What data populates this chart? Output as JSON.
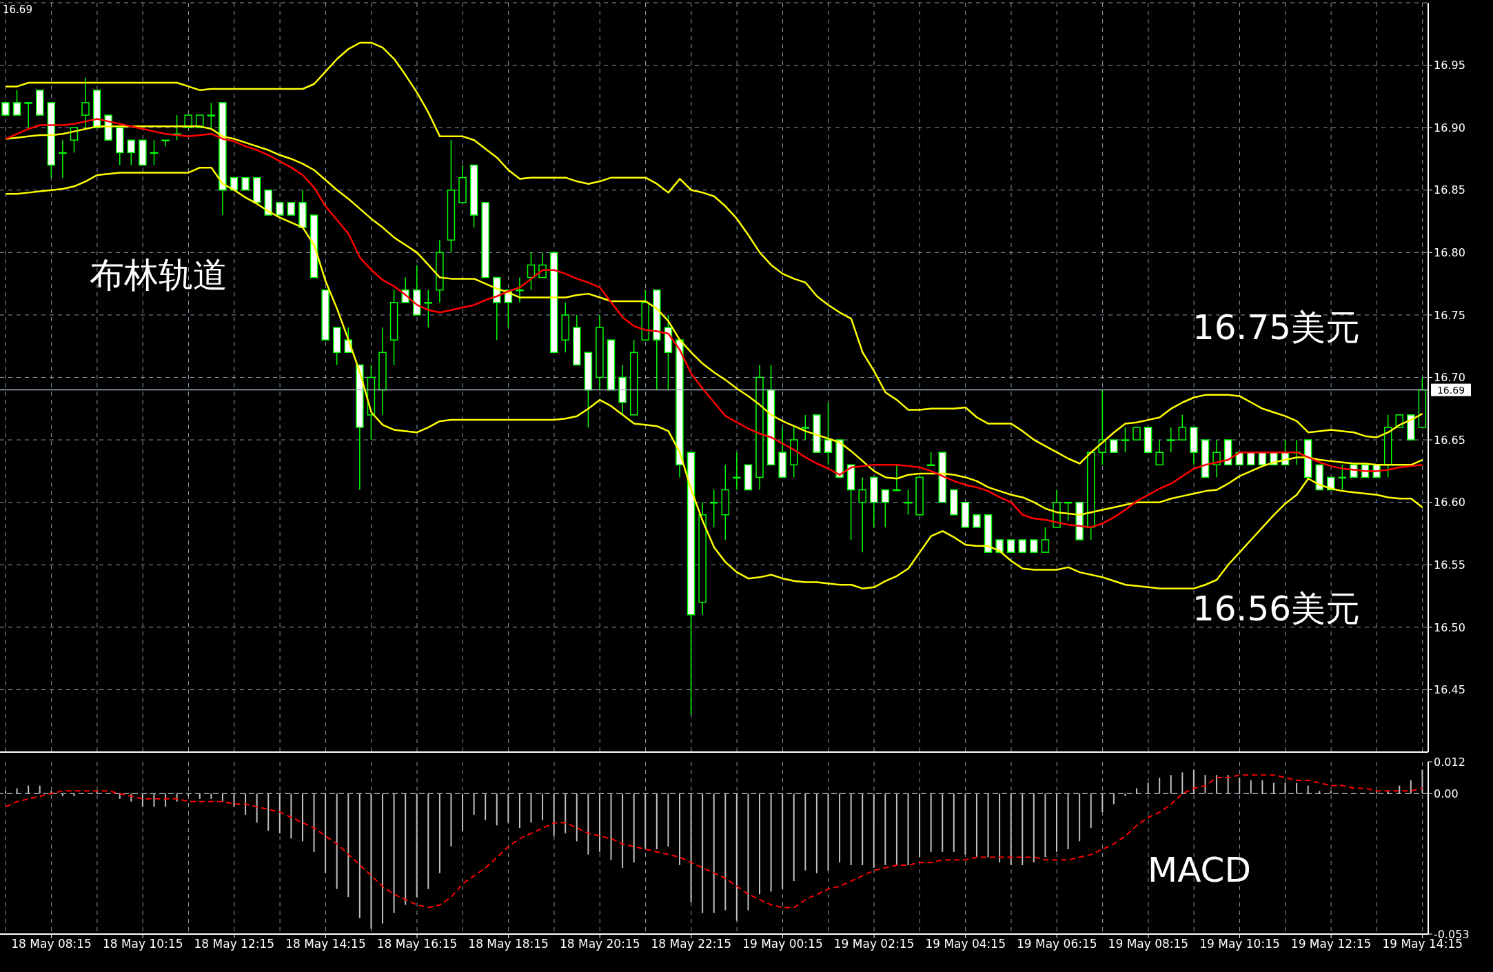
{
  "chart_data": [
    {
      "type": "candlestick",
      "color": "#00ff00",
      "tick_labels": "y",
      "grid": true,
      "categories": [
        null,
        null,
        null,
        null,
        null,
        null,
        null,
        null,
        null,
        null,
        null,
        null,
        null,
        null,
        null,
        null,
        null,
        null,
        null,
        null,
        null,
        null,
        null,
        null,
        null,
        null,
        null,
        null,
        null,
        null,
        null,
        null,
        null,
        null,
        null,
        null,
        null,
        null,
        null,
        null,
        null,
        null,
        null,
        null,
        null,
        null,
        null,
        null,
        null,
        null,
        null,
        null,
        null,
        null,
        null,
        null,
        null,
        null,
        null,
        null,
        null,
        null,
        null,
        null,
        null,
        null,
        null,
        null,
        null,
        null,
        null,
        null,
        null,
        null,
        null,
        null,
        null,
        null,
        null,
        null,
        null,
        null,
        null,
        null,
        null,
        null,
        null,
        null,
        null,
        null,
        null,
        null,
        null,
        null,
        null,
        null,
        null,
        null,
        null,
        null,
        null,
        null,
        null,
        null,
        null,
        null,
        null,
        null,
        null,
        null,
        null,
        null,
        null,
        null,
        null,
        null,
        null,
        null,
        null,
        null,
        null,
        null,
        null,
        null,
        null
      ],
      "ohlc": [
        [
          16.92,
          16.921,
          16.909,
          16.91
        ],
        [
          16.92,
          16.93,
          16.91,
          16.91
        ],
        [
          16.92,
          16.92,
          16.9,
          16.92
        ],
        [
          16.93,
          16.93,
          16.91,
          16.91
        ],
        [
          16.92,
          16.92,
          16.86,
          16.87
        ],
        [
          16.88,
          16.89,
          16.86,
          16.88
        ],
        [
          16.89,
          16.9,
          16.88,
          16.9
        ],
        [
          16.91,
          16.94,
          16.9,
          16.92
        ],
        [
          16.93,
          16.93,
          16.9,
          16.9
        ],
        [
          16.91,
          16.91,
          16.89,
          16.89
        ],
        [
          16.9,
          16.9,
          16.87,
          16.88
        ],
        [
          16.89,
          16.89,
          16.87,
          16.88
        ],
        [
          16.89,
          16.89,
          16.87,
          16.87
        ],
        [
          16.88,
          16.89,
          16.87,
          16.88
        ],
        [
          16.89,
          16.89,
          16.885,
          16.89
        ],
        [
          16.895,
          16.91,
          16.89,
          16.895
        ],
        [
          16.9,
          16.91,
          16.9,
          16.91
        ],
        [
          16.9,
          16.91,
          16.9,
          16.91
        ],
        [
          16.91,
          16.92,
          16.9,
          16.91
        ],
        [
          16.92,
          16.92,
          16.83,
          16.85
        ],
        [
          16.86,
          16.86,
          16.85,
          16.85
        ],
        [
          16.86,
          16.86,
          16.85,
          16.85
        ],
        [
          16.86,
          16.86,
          16.84,
          16.84
        ],
        [
          16.85,
          16.85,
          16.83,
          16.83
        ],
        [
          16.84,
          16.84,
          16.83,
          16.83
        ],
        [
          16.84,
          16.84,
          16.83,
          16.83
        ],
        [
          16.84,
          16.85,
          16.82,
          16.82
        ],
        [
          16.83,
          16.83,
          16.78,
          16.78
        ],
        [
          16.77,
          16.77,
          16.73,
          16.73
        ],
        [
          16.74,
          16.74,
          16.71,
          16.72
        ],
        [
          16.73,
          16.74,
          16.72,
          16.72
        ],
        [
          16.71,
          16.71,
          16.61,
          16.66
        ],
        [
          16.67,
          16.71,
          16.65,
          16.7
        ],
        [
          16.69,
          16.74,
          16.67,
          16.72
        ],
        [
          16.73,
          16.77,
          16.71,
          16.76
        ],
        [
          16.77,
          16.78,
          16.76,
          16.76
        ],
        [
          16.77,
          16.79,
          16.75,
          16.75
        ],
        [
          16.76,
          16.77,
          16.74,
          16.76
        ],
        [
          16.77,
          16.81,
          16.76,
          16.8
        ],
        [
          16.81,
          16.89,
          16.8,
          16.85
        ],
        [
          16.84,
          16.87,
          16.84,
          16.86
        ],
        [
          16.87,
          16.87,
          16.82,
          16.83
        ],
        [
          16.84,
          16.84,
          16.78,
          16.78
        ],
        [
          16.78,
          16.78,
          16.73,
          16.76
        ],
        [
          16.77,
          16.77,
          16.74,
          16.76
        ],
        [
          16.77,
          16.78,
          16.76,
          16.77
        ],
        [
          16.78,
          16.8,
          16.77,
          16.79
        ],
        [
          16.78,
          16.8,
          16.78,
          16.79
        ],
        [
          16.8,
          16.8,
          16.72,
          16.72
        ],
        [
          16.73,
          16.76,
          16.72,
          16.75
        ],
        [
          16.74,
          16.75,
          16.71,
          16.71
        ],
        [
          16.72,
          16.72,
          16.66,
          16.69
        ],
        [
          16.7,
          16.75,
          16.69,
          16.74
        ],
        [
          16.73,
          16.73,
          16.69,
          16.69
        ],
        [
          16.7,
          16.71,
          16.67,
          16.68
        ],
        [
          16.67,
          16.73,
          16.67,
          16.72
        ],
        [
          16.73,
          16.77,
          16.73,
          16.76
        ],
        [
          16.77,
          16.77,
          16.69,
          16.73
        ],
        [
          16.74,
          16.75,
          16.69,
          16.72
        ],
        [
          16.73,
          16.73,
          16.62,
          16.63
        ],
        [
          16.64,
          16.64,
          16.43,
          16.51
        ],
        [
          16.52,
          16.6,
          16.51,
          16.59
        ],
        [
          16.6,
          16.61,
          16.58,
          16.6
        ],
        [
          16.59,
          16.63,
          16.57,
          16.61
        ],
        [
          16.62,
          16.64,
          16.61,
          16.62
        ],
        [
          16.63,
          16.63,
          16.61,
          16.61
        ],
        [
          16.62,
          16.71,
          16.61,
          16.7
        ],
        [
          16.69,
          16.71,
          16.63,
          16.63
        ],
        [
          16.64,
          16.66,
          16.62,
          16.62
        ],
        [
          16.63,
          16.66,
          16.62,
          16.65
        ],
        [
          16.66,
          16.67,
          16.65,
          16.66
        ],
        [
          16.67,
          16.67,
          16.64,
          16.64
        ],
        [
          16.65,
          16.68,
          16.63,
          16.64
        ],
        [
          16.65,
          16.65,
          16.62,
          16.62
        ],
        [
          16.63,
          16.63,
          16.57,
          16.61
        ],
        [
          16.6,
          16.62,
          16.56,
          16.61
        ],
        [
          16.62,
          16.62,
          16.58,
          16.6
        ],
        [
          16.61,
          16.61,
          16.58,
          16.6
        ],
        [
          16.61,
          16.63,
          16.61,
          16.61
        ],
        [
          16.6,
          16.61,
          16.59,
          16.6
        ],
        [
          16.59,
          16.62,
          16.59,
          16.62
        ],
        [
          16.63,
          16.64,
          16.63,
          16.63
        ],
        [
          16.64,
          16.64,
          16.6,
          16.6
        ],
        [
          16.61,
          16.61,
          16.59,
          16.59
        ],
        [
          16.6,
          16.6,
          16.58,
          16.58
        ],
        [
          16.59,
          16.59,
          16.58,
          16.58
        ],
        [
          16.59,
          16.59,
          16.56,
          16.56
        ],
        [
          16.57,
          16.57,
          16.56,
          16.56
        ],
        [
          16.57,
          16.57,
          16.56,
          16.56
        ],
        [
          16.57,
          16.57,
          16.56,
          16.56
        ],
        [
          16.57,
          16.57,
          16.56,
          16.56
        ],
        [
          16.56,
          16.58,
          16.56,
          16.57
        ],
        [
          16.58,
          16.61,
          16.58,
          16.6
        ],
        [
          16.6,
          16.6,
          16.585,
          16.6
        ],
        [
          16.6,
          16.6,
          16.57,
          16.57
        ],
        [
          16.58,
          16.64,
          16.57,
          16.64
        ],
        [
          16.64,
          16.69,
          16.63,
          16.65
        ],
        [
          16.65,
          16.65,
          16.64,
          16.64
        ],
        [
          16.65,
          16.66,
          16.64,
          16.65
        ],
        [
          16.65,
          16.66,
          16.65,
          16.66
        ],
        [
          16.66,
          16.66,
          16.64,
          16.64
        ],
        [
          16.63,
          16.65,
          16.63,
          16.64
        ],
        [
          16.65,
          16.66,
          16.64,
          16.65
        ],
        [
          16.65,
          16.67,
          16.65,
          16.66
        ],
        [
          16.66,
          16.66,
          16.63,
          16.64
        ],
        [
          16.65,
          16.65,
          16.62,
          16.62
        ],
        [
          16.63,
          16.65,
          16.62,
          16.64
        ],
        [
          16.65,
          16.65,
          16.63,
          16.63
        ],
        [
          16.64,
          16.64,
          16.63,
          16.63
        ],
        [
          16.64,
          16.64,
          16.63,
          16.63
        ],
        [
          16.64,
          16.64,
          16.63,
          16.63
        ],
        [
          16.64,
          16.64,
          16.63,
          16.63
        ],
        [
          16.64,
          16.65,
          16.63,
          16.63
        ],
        [
          16.64,
          16.65,
          16.63,
          16.64
        ],
        [
          16.65,
          16.65,
          16.62,
          16.62
        ],
        [
          16.63,
          16.63,
          16.61,
          16.61
        ],
        [
          16.62,
          16.62,
          16.61,
          16.61
        ],
        [
          16.62,
          16.63,
          16.61,
          16.62
        ],
        [
          16.63,
          16.63,
          16.62,
          16.62
        ],
        [
          16.63,
          16.63,
          16.62,
          16.62
        ],
        [
          16.63,
          16.63,
          16.62,
          16.62
        ],
        [
          16.63,
          16.67,
          16.62,
          16.66
        ],
        [
          16.66,
          16.67,
          16.66,
          16.67
        ],
        [
          16.67,
          16.67,
          16.65,
          16.65
        ],
        [
          16.66,
          16.7,
          16.66,
          16.69
        ]
      ],
      "series": [
        {
          "type": "line",
          "color": "#ffff00",
          "values": [
            16.933,
            16.933,
            16.936,
            16.936,
            16.936,
            16.936,
            16.936,
            16.936,
            16.936,
            16.936,
            16.936,
            16.936,
            16.936,
            16.936,
            16.936,
            16.936,
            16.933,
            16.93,
            16.931,
            16.931,
            16.931,
            16.931,
            16.931,
            16.931,
            16.931,
            16.931,
            16.931,
            16.935,
            16.945,
            16.955,
            16.963,
            16.968,
            16.968,
            16.964,
            16.955,
            16.942,
            16.928,
            16.912,
            16.893,
            16.893,
            16.893,
            16.89,
            16.883,
            16.876,
            16.866,
            16.859,
            16.86,
            16.86,
            16.86,
            16.86,
            16.857,
            16.855,
            16.857,
            16.86,
            16.86,
            16.86,
            16.86,
            16.855,
            16.848,
            16.859,
            16.85,
            16.848,
            16.845,
            16.837,
            16.827,
            16.814,
            16.8,
            16.79,
            16.783,
            16.779,
            16.776,
            16.765,
            16.758,
            16.752,
            16.747,
            16.72,
            16.705,
            16.688,
            16.682,
            16.674,
            16.674,
            16.675,
            16.675,
            16.675,
            16.676,
            16.668,
            16.663,
            16.663,
            16.663,
            16.657,
            16.65,
            16.645,
            16.64,
            16.635,
            16.631,
            16.64,
            16.648,
            16.656,
            16.663,
            16.664,
            16.666,
            16.668,
            16.675,
            16.68,
            16.684,
            16.686,
            16.686,
            16.686,
            16.685,
            16.68,
            16.675,
            16.672,
            16.669,
            16.665,
            16.656,
            16.657,
            16.658,
            16.657,
            16.656,
            16.653,
            16.652,
            16.656,
            16.662,
            16.666,
            16.671
          ]
        },
        {
          "type": "line",
          "color": "#ffff00",
          "values": [
            16.891,
            16.892,
            16.893,
            16.894,
            16.894,
            16.895,
            16.897,
            16.899,
            16.901,
            16.901,
            16.901,
            16.901,
            16.901,
            16.901,
            16.901,
            16.901,
            16.901,
            16.901,
            16.899,
            16.893,
            16.891,
            16.888,
            16.885,
            16.882,
            16.878,
            16.875,
            16.871,
            16.866,
            16.858,
            16.85,
            16.843,
            16.835,
            16.827,
            16.82,
            16.812,
            16.806,
            16.8,
            16.79,
            16.78,
            16.779,
            16.779,
            16.779,
            16.775,
            16.771,
            16.768,
            16.764,
            16.764,
            16.764,
            16.764,
            16.764,
            16.766,
            16.767,
            16.764,
            16.761,
            16.761,
            16.761,
            16.761,
            16.755,
            16.745,
            16.73,
            16.72,
            16.711,
            16.704,
            16.698,
            16.691,
            16.685,
            16.678,
            16.67,
            16.665,
            16.661,
            16.657,
            16.654,
            16.651,
            16.648,
            16.641,
            16.633,
            16.625,
            16.62,
            16.619,
            16.622,
            16.623,
            16.623,
            16.623,
            16.622,
            16.62,
            16.617,
            16.612,
            16.609,
            16.606,
            16.604,
            16.6,
            16.595,
            16.592,
            16.591,
            16.59,
            16.592,
            16.594,
            16.596,
            16.598,
            16.6,
            16.6,
            16.6,
            16.603,
            16.605,
            16.607,
            16.609,
            16.61,
            16.615,
            16.621,
            16.625,
            16.629,
            16.632,
            16.634,
            16.636,
            16.636,
            16.634,
            16.633,
            16.632,
            16.631,
            16.631,
            16.63,
            16.63,
            16.63,
            16.63,
            16.634
          ]
        },
        {
          "type": "line",
          "color": "#ffff00",
          "values": [
            16.847,
            16.847,
            16.848,
            16.849,
            16.85,
            16.851,
            16.853,
            16.857,
            16.862,
            16.863,
            16.864,
            16.864,
            16.864,
            16.864,
            16.864,
            16.864,
            16.864,
            16.868,
            16.868,
            16.855,
            16.85,
            16.844,
            16.839,
            16.833,
            16.828,
            16.824,
            16.82,
            16.806,
            16.777,
            16.755,
            16.73,
            16.704,
            16.672,
            16.662,
            16.658,
            16.657,
            16.656,
            16.66,
            16.665,
            16.666,
            16.666,
            16.666,
            16.666,
            16.666,
            16.666,
            16.666,
            16.666,
            16.666,
            16.666,
            16.667,
            16.669,
            16.675,
            16.682,
            16.677,
            16.67,
            16.663,
            16.662,
            16.661,
            16.657,
            16.64,
            16.61,
            16.585,
            16.564,
            16.552,
            16.544,
            16.539,
            16.54,
            16.542,
            16.539,
            16.537,
            16.536,
            16.536,
            16.535,
            16.534,
            16.534,
            16.531,
            16.532,
            16.537,
            16.541,
            16.547,
            16.56,
            16.573,
            16.577,
            16.572,
            16.566,
            16.565,
            16.565,
            16.561,
            16.553,
            16.547,
            16.546,
            16.546,
            16.546,
            16.548,
            16.544,
            16.542,
            16.54,
            16.537,
            16.534,
            16.533,
            16.532,
            16.531,
            16.531,
            16.531,
            16.531,
            16.534,
            16.538,
            16.55,
            16.56,
            16.57,
            16.58,
            16.59,
            16.599,
            16.606,
            16.619,
            16.614,
            16.611,
            16.609,
            16.608,
            16.607,
            16.606,
            16.604,
            16.603,
            16.603,
            16.596
          ]
        },
        {
          "type": "line",
          "color": "#ff0000",
          "values": [
            16.891,
            16.895,
            16.899,
            16.902,
            16.902,
            16.902,
            16.903,
            16.905,
            16.907,
            16.905,
            16.903,
            16.901,
            16.899,
            16.897,
            16.895,
            16.894,
            16.893,
            16.894,
            16.895,
            16.891,
            16.889,
            16.885,
            16.882,
            16.878,
            16.873,
            16.868,
            16.862,
            16.852,
            16.837,
            16.826,
            16.815,
            16.796,
            16.786,
            16.778,
            16.773,
            16.766,
            16.758,
            16.754,
            16.752,
            16.754,
            16.756,
            16.758,
            16.762,
            16.765,
            16.769,
            16.772,
            16.779,
            16.786,
            16.786,
            16.783,
            16.779,
            16.776,
            16.772,
            16.76,
            16.748,
            16.741,
            16.738,
            16.737,
            16.735,
            16.722,
            16.703,
            16.691,
            16.68,
            16.669,
            16.664,
            16.659,
            16.655,
            16.652,
            16.647,
            16.642,
            16.636,
            16.631,
            16.627,
            16.622,
            16.628,
            16.629,
            16.63,
            16.63,
            16.63,
            16.629,
            16.628,
            16.625,
            16.621,
            16.617,
            16.614,
            16.612,
            16.609,
            16.604,
            16.6,
            16.59,
            16.587,
            16.586,
            16.584,
            16.582,
            16.581,
            16.58,
            16.583,
            16.588,
            16.594,
            16.601,
            16.606,
            16.611,
            16.615,
            16.621,
            16.627,
            16.63,
            16.632,
            16.634,
            16.64,
            16.64,
            16.64,
            16.64,
            16.64,
            16.64,
            16.636,
            16.632,
            16.629,
            16.627,
            16.626,
            16.625,
            16.625,
            16.626,
            16.628,
            16.629,
            16.63
          ]
        }
      ],
      "ylim": [
        16.4,
        17.0
      ],
      "yticks": [
        {
          "value": 16.45,
          "label": "16.45"
        },
        {
          "value": 16.5,
          "label": "16.50"
        },
        {
          "value": 16.55,
          "label": "16.55"
        },
        {
          "value": 16.6,
          "label": "16.60"
        },
        {
          "value": 16.65,
          "label": "16.65"
        },
        {
          "value": 16.7,
          "label": "16.70"
        },
        {
          "value": 16.75,
          "label": "16.75"
        },
        {
          "value": 16.8,
          "label": "16.80"
        },
        {
          "value": 16.85,
          "label": "16.85"
        },
        {
          "value": 16.9,
          "label": "16.90"
        },
        {
          "value": 16.95,
          "label": "16.95"
        }
      ],
      "ref_lines": [
        {
          "axis": "y",
          "value": 16.69,
          "label": "16.69",
          "color": "#a8b8c8"
        }
      ],
      "annotations": [
        "16.69",
        "布林轨道",
        "16.75美元",
        "16.56美元"
      ]
    },
    {
      "type": "bar",
      "grid": "x",
      "categories": [
        null,
        null,
        null,
        null,
        "18 May 08:15",
        null,
        null,
        null,
        null,
        null,
        null,
        null,
        "18 May 10:15",
        null,
        null,
        null,
        null,
        null,
        null,
        null,
        "18 May 12:15",
        null,
        null,
        null,
        null,
        null,
        null,
        null,
        "18 May 14:15",
        null,
        null,
        null,
        null,
        null,
        null,
        null,
        "18 May 16:15",
        null,
        null,
        null,
        null,
        null,
        null,
        null,
        "18 May 18:15",
        null,
        null,
        null,
        null,
        null,
        null,
        null,
        "18 May 20:15",
        null,
        null,
        null,
        null,
        null,
        null,
        null,
        "18 May 22:15",
        null,
        null,
        null,
        null,
        null,
        null,
        null,
        "19 May 00:15",
        null,
        null,
        null,
        null,
        null,
        null,
        null,
        "19 May 02:15",
        null,
        null,
        null,
        null,
        null,
        null,
        null,
        "19 May 04:15",
        null,
        null,
        null,
        null,
        null,
        null,
        null,
        "19 May 06:15",
        null,
        null,
        null,
        null,
        null,
        null,
        null,
        "19 May 08:15",
        null,
        null,
        null,
        null,
        null,
        null,
        null,
        "19 May 10:15",
        null,
        null,
        null,
        null,
        null,
        null,
        null,
        "19 May 12:15",
        null,
        null,
        null,
        null,
        null,
        null,
        null,
        "19 May 14:15"
      ],
      "series": [
        {
          "type": "bar",
          "color": "#c0c0c0",
          "values": [
            0.001,
            0.002,
            0.003,
            0.003,
            0.001,
            -0.001,
            -0.001,
            0,
            0.001,
            0,
            -0.002,
            -0.003,
            -0.005,
            -0.005,
            -0.005,
            -0.003,
            -0.001,
            -0.002,
            -0.002,
            -0.003,
            -0.005,
            -0.008,
            -0.011,
            -0.014,
            -0.015,
            -0.017,
            -0.018,
            -0.022,
            -0.03,
            -0.036,
            -0.039,
            -0.047,
            -0.051,
            -0.049,
            -0.045,
            -0.042,
            -0.039,
            -0.036,
            -0.03,
            -0.02,
            -0.014,
            -0.008,
            -0.01,
            -0.012,
            -0.011,
            -0.013,
            -0.011,
            -0.01,
            -0.016,
            -0.015,
            -0.018,
            -0.023,
            -0.022,
            -0.025,
            -0.028,
            -0.026,
            -0.021,
            -0.021,
            -0.02,
            -0.027,
            -0.041,
            -0.045,
            -0.045,
            -0.044,
            -0.048,
            -0.044,
            -0.038,
            -0.037,
            -0.036,
            -0.033,
            -0.029,
            -0.03,
            -0.029,
            -0.026,
            -0.027,
            -0.027,
            -0.028,
            -0.027,
            -0.027,
            -0.027,
            -0.024,
            -0.022,
            -0.022,
            -0.022,
            -0.023,
            -0.024,
            -0.024,
            -0.026,
            -0.027,
            -0.027,
            -0.026,
            -0.024,
            -0.022,
            -0.021,
            -0.018,
            -0.013,
            -0.007,
            -0.004,
            -0.001,
            0.002,
            0.004,
            0.006,
            0.007,
            0.008,
            0.009,
            0.007,
            0.007,
            0.007,
            0.006,
            0.005,
            0.005,
            0.004,
            0.004,
            0.004,
            0.003,
            0.001,
            0.001,
            0,
            0,
            0,
            0.001,
            0.001,
            0.003,
            0.005,
            0.009
          ]
        },
        {
          "type": "line",
          "color": "#ff0000",
          "line_style": "dashed",
          "values": [
            -0.005,
            -0.003,
            -0.002,
            -0.001,
            0,
            0.001,
            0.001,
            0.001,
            0.001,
            0.001,
            0,
            -0.001,
            -0.002,
            -0.002,
            -0.002,
            -0.002,
            -0.003,
            -0.003,
            -0.003,
            -0.003,
            -0.004,
            -0.004,
            -0.005,
            -0.006,
            -0.007,
            -0.009,
            -0.011,
            -0.013,
            -0.016,
            -0.019,
            -0.023,
            -0.027,
            -0.031,
            -0.035,
            -0.038,
            -0.04,
            -0.042,
            -0.043,
            -0.042,
            -0.039,
            -0.034,
            -0.031,
            -0.028,
            -0.024,
            -0.02,
            -0.017,
            -0.015,
            -0.013,
            -0.011,
            -0.011,
            -0.013,
            -0.015,
            -0.016,
            -0.017,
            -0.019,
            -0.02,
            -0.021,
            -0.022,
            -0.023,
            -0.024,
            -0.026,
            -0.028,
            -0.03,
            -0.032,
            -0.035,
            -0.038,
            -0.04,
            -0.042,
            -0.043,
            -0.043,
            -0.04,
            -0.038,
            -0.036,
            -0.035,
            -0.033,
            -0.031,
            -0.029,
            -0.028,
            -0.027,
            -0.027,
            -0.026,
            -0.026,
            -0.025,
            -0.025,
            -0.025,
            -0.024,
            -0.024,
            -0.024,
            -0.024,
            -0.024,
            -0.024,
            -0.025,
            -0.025,
            -0.025,
            -0.024,
            -0.023,
            -0.021,
            -0.019,
            -0.016,
            -0.012,
            -0.009,
            -0.007,
            -0.004,
            0,
            0.002,
            0.003,
            0.006,
            0.006,
            0.007,
            0.007,
            0.007,
            0.007,
            0.006,
            0.005,
            0.005,
            0.004,
            0.003,
            0.003,
            0.002,
            0.002,
            0.001,
            0.001,
            0.001,
            0.001,
            0.002
          ]
        }
      ],
      "ylim": [
        -0.053,
        0.012
      ],
      "yticks": [
        0.012,
        {
          "value": 0,
          "label": "0.00"
        },
        -0.053
      ],
      "ref_lines": [
        {
          "axis": "y",
          "value": 0,
          "color": "#a8b8c8",
          "line_style": "dashed"
        }
      ],
      "annotations": [
        "MACD"
      ]
    }
  ]
}
